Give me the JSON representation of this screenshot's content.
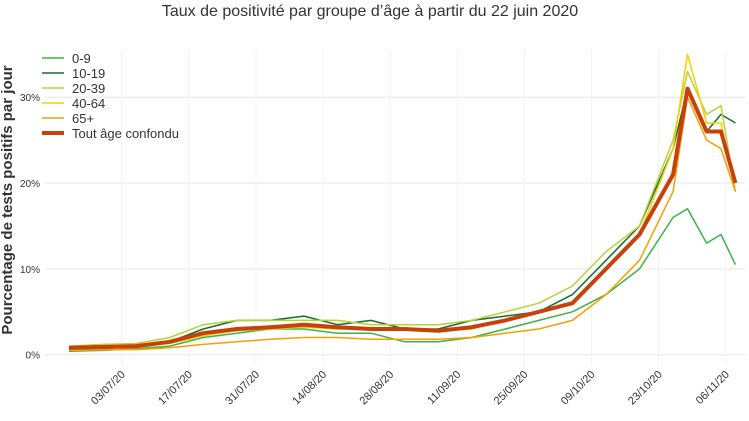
{
  "chart_data": {
    "type": "line",
    "title": "Taux de positivité par groupe d’âge à partir du 22 juin 2020",
    "y_label": "Pourcentage de tests positifs par jour",
    "x": [
      "22/06/20",
      "29/06/20",
      "06/07/20",
      "13/07/20",
      "20/07/20",
      "27/07/20",
      "03/08/20",
      "10/08/20",
      "17/08/20",
      "24/08/20",
      "31/08/20",
      "07/09/20",
      "14/09/20",
      "21/09/20",
      "28/09/20",
      "05/10/20",
      "12/10/20",
      "19/10/20",
      "26/10/20",
      "29/10/20",
      "02/11/20",
      "05/11/20",
      "08/11/20"
    ],
    "series": [
      {
        "name": "0-9",
        "color": "#3cb34a",
        "width": 1.5,
        "values": [
          0.4,
          0.5,
          0.7,
          1,
          2,
          2.5,
          3,
          3,
          2.5,
          2.5,
          1.5,
          1.5,
          2,
          3,
          4,
          5,
          7,
          10,
          16,
          17,
          13,
          14,
          10.5
        ]
      },
      {
        "name": "10-19",
        "color": "#1a6b30",
        "width": 1.5,
        "values": [
          0.6,
          0.7,
          1,
          1.5,
          3,
          4,
          4,
          4.5,
          3.5,
          4,
          3,
          3,
          4,
          4.5,
          5,
          7,
          11,
          15,
          24,
          31,
          26,
          28,
          27
        ]
      },
      {
        "name": "20-39",
        "color": "#b5d334",
        "width": 1.5,
        "values": [
          1,
          1.2,
          1.3,
          2,
          3.5,
          4,
          4,
          4,
          4,
          3.5,
          3.5,
          3.5,
          4,
          5,
          6,
          8,
          12,
          15,
          25,
          33,
          28,
          29,
          19
        ]
      },
      {
        "name": "40-64",
        "color": "#f2d100",
        "width": 1.5,
        "values": [
          0.7,
          0.8,
          0.9,
          1.3,
          2.2,
          2.8,
          3,
          3.2,
          3,
          3,
          3,
          2.8,
          3,
          4,
          5,
          6,
          10,
          14,
          24,
          35,
          27,
          27,
          19
        ]
      },
      {
        "name": "65+",
        "color": "#f5a000",
        "width": 1.5,
        "values": [
          0.5,
          0.6,
          0.6,
          0.8,
          1.2,
          1.5,
          1.8,
          2,
          2,
          1.8,
          1.8,
          1.8,
          2,
          2.5,
          3,
          4,
          7,
          11,
          19,
          30,
          25,
          24,
          19
        ]
      },
      {
        "name": "Tout âge confondu",
        "color": "#c8400a",
        "width": 4,
        "values": [
          0.8,
          0.9,
          1,
          1.5,
          2.5,
          3,
          3.2,
          3.5,
          3.2,
          3,
          3,
          2.8,
          3.2,
          4,
          5,
          6,
          10,
          14,
          21,
          31,
          26,
          26,
          20
        ]
      }
    ],
    "xlim": [
      "17/06/20",
      "10/11/20"
    ],
    "xticks": [
      "03/07/20",
      "17/07/20",
      "31/07/20",
      "14/08/20",
      "28/08/20",
      "11/09/20",
      "25/09/20",
      "09/10/20",
      "23/10/20",
      "06/11/20"
    ],
    "ylim": [
      -1.2,
      35.5
    ],
    "yticks": [
      {
        "value": 0,
        "label": "0%"
      },
      {
        "value": 10,
        "label": "10%"
      },
      {
        "value": 20,
        "label": "20%"
      },
      {
        "value": 30,
        "label": "30%"
      }
    ],
    "grid": true,
    "legend": "top-left"
  }
}
